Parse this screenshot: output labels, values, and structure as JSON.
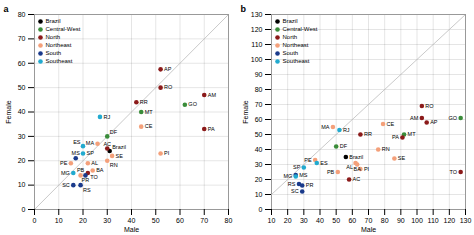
{
  "chart_data": [
    {
      "type": "scatter",
      "title": "a",
      "xlabel": "Male",
      "ylabel": "Female",
      "xlim": [
        0,
        80
      ],
      "ylim": [
        0,
        80
      ],
      "xticks": [
        0,
        10,
        20,
        30,
        40,
        50,
        60,
        70,
        80
      ],
      "yticks": [
        0,
        10,
        20,
        30,
        40,
        50,
        60,
        70,
        80
      ],
      "grid": true,
      "legend": "upper left",
      "series": [
        {
          "name": "Brazil",
          "color": "#000000",
          "x": [
            31
          ],
          "values": [
            24
          ],
          "labels": [
            "Brazil"
          ]
        },
        {
          "name": "Central-West",
          "color": "#3a8c3a",
          "x": [
            62,
            44,
            30
          ],
          "values": [
            43,
            40,
            30
          ],
          "labels": [
            "GO",
            "MT",
            "DF"
          ]
        },
        {
          "name": "North",
          "color": "#8b1a1a",
          "x": [
            52,
            52,
            70,
            70,
            22,
            42,
            30
          ],
          "values": [
            57.5,
            50,
            47,
            33,
            15,
            44,
            25
          ],
          "labels": [
            "AP",
            "RO",
            "AM",
            "PA",
            "TO",
            "RR",
            "AC"
          ]
        },
        {
          "name": "Northeast",
          "color": "#f4a07a",
          "x": [
            44,
            52,
            26,
            30,
            22,
            32,
            15,
            19,
            24
          ],
          "values": [
            34,
            23,
            27,
            20,
            19,
            22,
            19,
            14,
            16
          ],
          "labels": [
            "CE",
            "PI",
            "MA",
            "RN",
            "AL",
            "SE",
            "PE",
            "PB",
            "BA"
          ]
        },
        {
          "name": "South",
          "color": "#1a3a8b",
          "x": [
            19,
            16,
            21,
            17
          ],
          "values": [
            10,
            10,
            14,
            21
          ],
          "labels": [
            "RS",
            "SC",
            "PR",
            "MS"
          ]
        },
        {
          "name": "Southeast",
          "color": "#22aacf",
          "x": [
            27,
            20,
            20,
            16
          ],
          "values": [
            38,
            23,
            26,
            15
          ],
          "labels": [
            "RJ",
            "SP",
            "ES",
            "MG"
          ]
        }
      ]
    },
    {
      "type": "scatter",
      "title": "b",
      "xlabel": "Male",
      "ylabel": "Female",
      "xlim": [
        10,
        130
      ],
      "ylim": [
        0,
        130
      ],
      "xticks": [
        10,
        20,
        30,
        40,
        50,
        60,
        70,
        80,
        90,
        100,
        110,
        120,
        130
      ],
      "yticks": [
        0,
        10,
        20,
        30,
        40,
        50,
        60,
        70,
        80,
        90,
        100,
        110,
        120,
        130
      ],
      "grid": true,
      "legend": "upper left",
      "series": [
        {
          "name": "Brazil",
          "color": "#000000",
          "x": [
            56
          ],
          "values": [
            35
          ],
          "labels": [
            "Brazil"
          ]
        },
        {
          "name": "Central-West",
          "color": "#3a8c3a",
          "x": [
            127,
            92,
            50
          ],
          "values": [
            61,
            50,
            42
          ],
          "labels": [
            "GO",
            "MT",
            "DF"
          ]
        },
        {
          "name": "North",
          "color": "#8b1a1a",
          "x": [
            103,
            103,
            106,
            91,
            127,
            58,
            65
          ],
          "values": [
            69,
            61,
            58,
            48,
            25,
            20,
            50
          ],
          "labels": [
            "RO",
            "AM",
            "AP",
            "PA",
            "TO",
            "AC",
            "RR"
          ]
        },
        {
          "name": "Northeast",
          "color": "#f4a07a",
          "x": [
            79,
            65,
            48,
            76,
            62,
            86,
            37,
            51,
            63
          ],
          "values": [
            57,
            27,
            55,
            40,
            31,
            34,
            33,
            25,
            30
          ],
          "labels": [
            "CE",
            "PI",
            "MA",
            "RN",
            "AL",
            "SE",
            "PE",
            "PB",
            "BA"
          ]
        },
        {
          "name": "South",
          "color": "#1a3a8b",
          "x": [
            27,
            29,
            29,
            25
          ],
          "values": [
            17,
            12,
            16,
            23
          ],
          "labels": [
            "RS",
            "SC",
            "PR",
            "MS"
          ]
        },
        {
          "name": "Southeast",
          "color": "#22aacf",
          "x": [
            52,
            30,
            38,
            25
          ],
          "values": [
            53,
            28,
            31,
            22
          ],
          "labels": [
            "RJ",
            "SP",
            "ES",
            "MG"
          ]
        }
      ]
    }
  ]
}
